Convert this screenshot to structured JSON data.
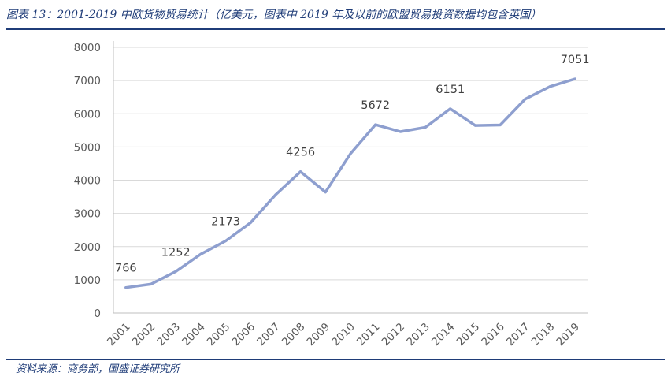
{
  "header": {
    "title": "图表 13：2001-2019 中欧货物贸易统计（亿美元，图表中 2019 年及以前的欧盟贸易投资数据均包含英国）"
  },
  "chart_data": {
    "type": "line",
    "x": [
      "2001",
      "2002",
      "2003",
      "2004",
      "2005",
      "2006",
      "2007",
      "2008",
      "2009",
      "2010",
      "2011",
      "2012",
      "2013",
      "2014",
      "2015",
      "2016",
      "2017",
      "2018",
      "2019"
    ],
    "series": [
      {
        "values": [
          766,
          868,
          1252,
          1773,
          2173,
          2723,
          3562,
          4256,
          3641,
          4797,
          5672,
          5460,
          5591,
          6151,
          5647,
          5661,
          6441,
          6821,
          7051
        ]
      }
    ],
    "labeled_points": [
      {
        "x": "2001",
        "label": "766"
      },
      {
        "x": "2003",
        "label": "1252"
      },
      {
        "x": "2005",
        "label": "2173"
      },
      {
        "x": "2008",
        "label": "4256"
      },
      {
        "x": "2011",
        "label": "5672"
      },
      {
        "x": "2014",
        "label": "6151"
      },
      {
        "x": "2019",
        "label": "7051"
      }
    ],
    "yticks": [
      0,
      1000,
      2000,
      3000,
      4000,
      5000,
      6000,
      7000,
      8000
    ],
    "ylim": [
      0,
      8000
    ],
    "grid": true,
    "line_color": "#8e9fcf"
  },
  "footer": {
    "source": "资料来源：商务部，国盛证券研究所"
  }
}
